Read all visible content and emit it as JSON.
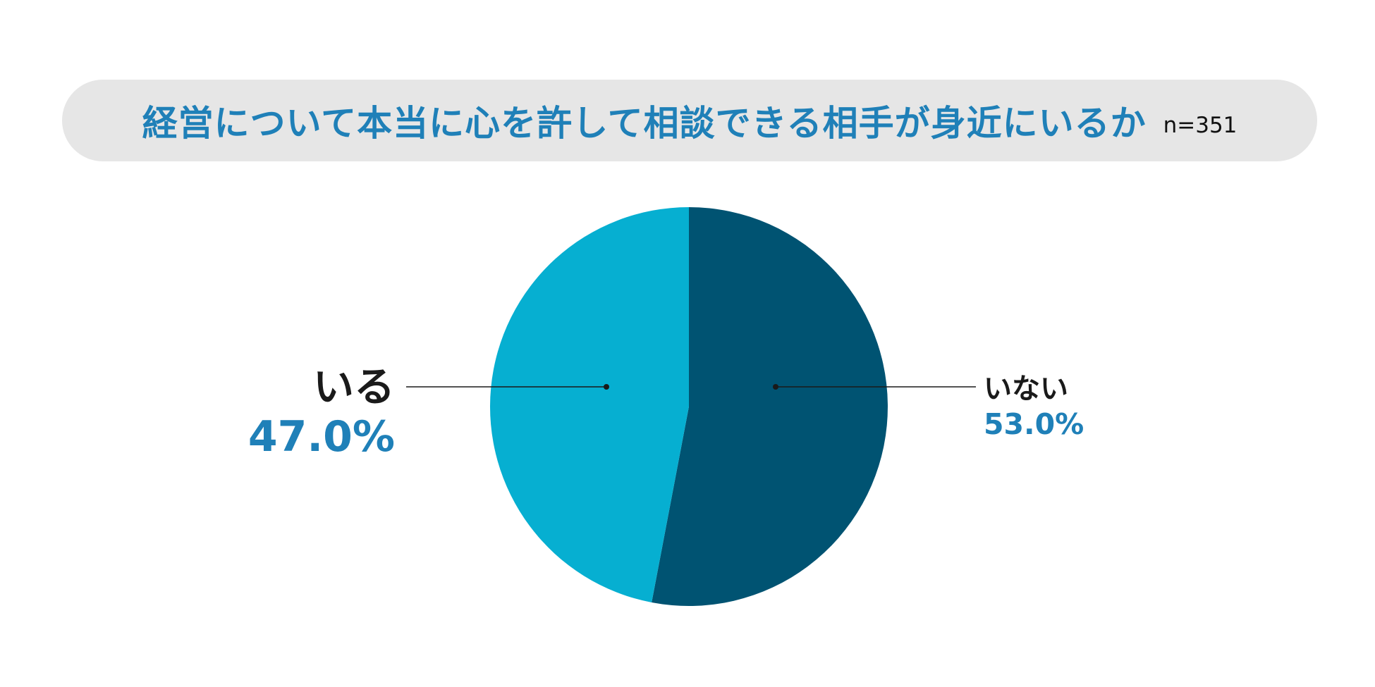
{
  "header": {
    "title": "経営について本当に心を許して相談できる相手が身近にいるか",
    "sample_size": "n=351"
  },
  "colors": {
    "title_text": "#1f80b8",
    "title_bg": "#e6e6e6",
    "value_text": "#1f80b8",
    "slice_iru": "#06afd1",
    "slice_inai": "#005372"
  },
  "chart_data": {
    "type": "pie",
    "title": "経営について本当に心を許して相談できる相手が身近にいるか",
    "slices": [
      {
        "label": "いない",
        "value": 53.0,
        "display": "53.0%",
        "color": "#005372"
      },
      {
        "label": "いる",
        "value": 47.0,
        "display": "47.0%",
        "color": "#06afd1"
      }
    ],
    "start_angle_deg": 0,
    "direction": "clockwise",
    "legend": "none"
  }
}
